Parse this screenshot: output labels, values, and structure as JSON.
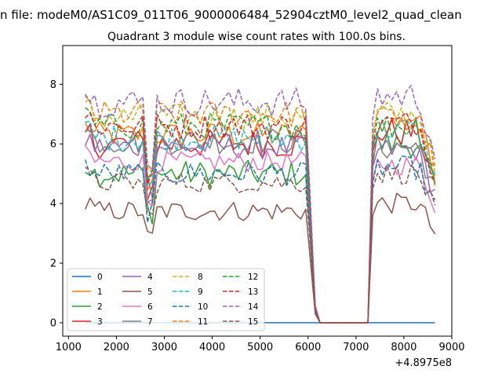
{
  "chart_data": {
    "type": "line",
    "suptitle": "n file: modeM0/AS1C09_011T06_9000006484_52904cztM0_level2_quad_clean",
    "title": "Quadrant 3 module wise count rates with 100.0s bins.",
    "xlabel": "",
    "ylabel": "",
    "x_offset_label": "+4.8975e8",
    "xlim": [
      880,
      9000
    ],
    "ylim": [
      -0.45,
      9.3
    ],
    "xticks": [
      1000,
      2000,
      3000,
      4000,
      5000,
      6000,
      7000,
      8000,
      9000
    ],
    "xtick_labels": [
      "1000",
      "2000",
      "3000",
      "4000",
      "5000",
      "6000",
      "7000",
      "8000",
      "9000"
    ],
    "yticks": [
      0,
      2,
      4,
      6,
      8
    ],
    "ytick_labels": [
      "0",
      "2",
      "4",
      "6",
      "8"
    ],
    "grid": false,
    "legend_location": "lower-left",
    "legend_columns": 4,
    "series": [
      {
        "name": "0",
        "color": "#1f77b4",
        "style": "solid",
        "base": 0.0,
        "flat": true,
        "amp": 0.0,
        "post": 0.0
      },
      {
        "name": "1",
        "color": "#ff7f0e",
        "style": "solid",
        "base": 6.3,
        "amp": 0.45,
        "post": 6.7
      },
      {
        "name": "2",
        "color": "#2ca02c",
        "style": "solid",
        "base": 5.0,
        "amp": 0.45,
        "post": 6.0
      },
      {
        "name": "3",
        "color": "#d62728",
        "style": "solid",
        "base": 6.0,
        "amp": 0.5,
        "post": 6.4
      },
      {
        "name": "4",
        "color": "#9467bd",
        "style": "solid",
        "base": 5.9,
        "amp": 0.4,
        "post": 5.8
      },
      {
        "name": "5",
        "color": "#8c564b",
        "style": "solid",
        "base": 3.75,
        "amp": 0.35,
        "post": 4.0
      },
      {
        "name": "6",
        "color": "#e377c2",
        "style": "solid",
        "base": 5.4,
        "amp": 0.35,
        "post": 5.3
      },
      {
        "name": "7",
        "color": "#7f7f7f",
        "style": "solid",
        "base": 6.1,
        "amp": 0.45,
        "post": 5.9
      },
      {
        "name": "8",
        "color": "#bcbd22",
        "style": "dashed",
        "base": 6.9,
        "amp": 0.45,
        "post": 7.0
      },
      {
        "name": "9",
        "color": "#17becf",
        "style": "dashed",
        "base": 6.2,
        "amp": 0.45,
        "post": 6.5
      },
      {
        "name": "10",
        "color": "#1f77b4",
        "style": "dashed",
        "base": 5.0,
        "amp": 0.4,
        "post": 5.2
      },
      {
        "name": "11",
        "color": "#ff7f0e",
        "style": "dashed",
        "base": 7.0,
        "amp": 0.45,
        "post": 6.9
      },
      {
        "name": "12",
        "color": "#2ca02c",
        "style": "dashed",
        "base": 6.6,
        "amp": 0.45,
        "post": 6.6
      },
      {
        "name": "13",
        "color": "#d62728",
        "style": "dashed",
        "base": 6.6,
        "amp": 0.45,
        "post": 6.7
      },
      {
        "name": "14",
        "color": "#9467bd",
        "style": "dashed",
        "base": 7.4,
        "amp": 0.5,
        "post": 7.6
      },
      {
        "name": "15",
        "color": "#8c564b",
        "style": "dashed",
        "base": 4.7,
        "amp": 0.35,
        "post": 5.0
      }
    ],
    "x_start": 1350,
    "x_step": 100,
    "gap_start": 6250,
    "gap_end": 7250,
    "x_end": 8650
  }
}
